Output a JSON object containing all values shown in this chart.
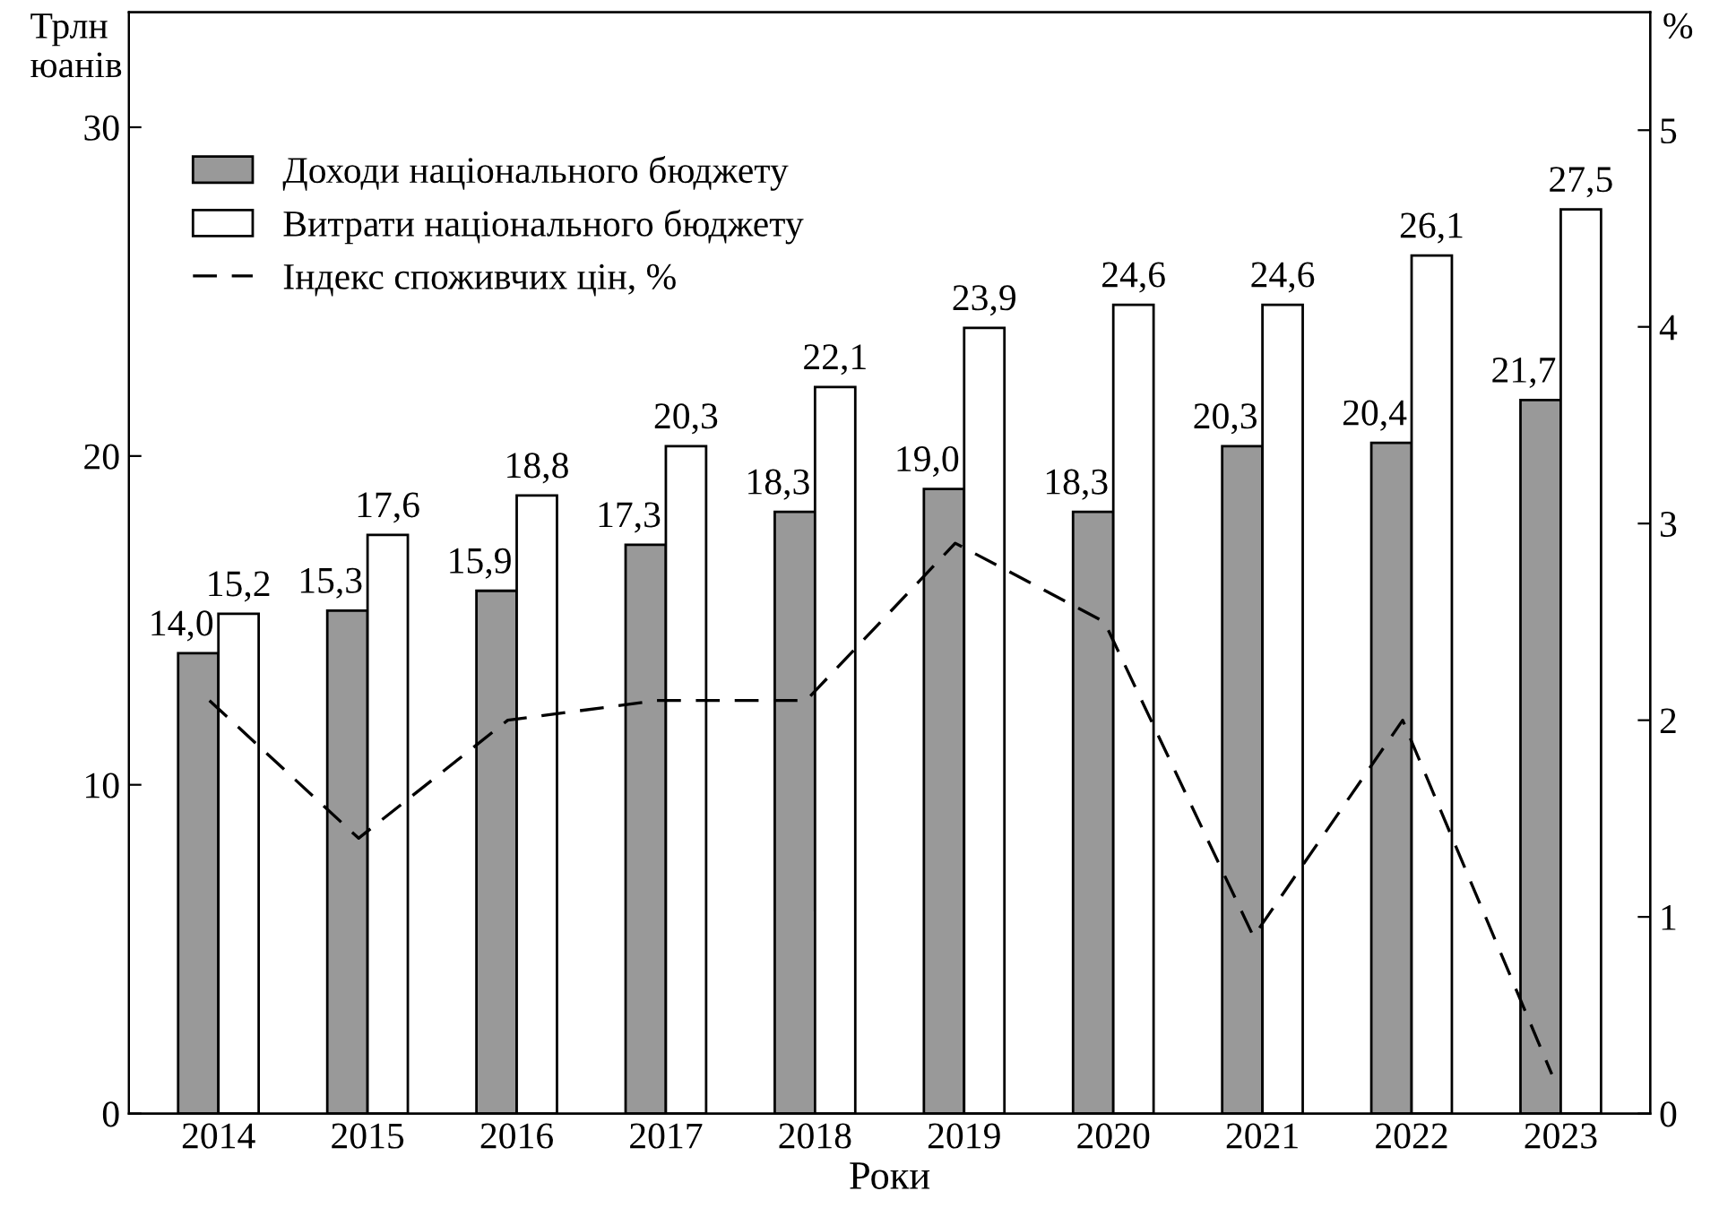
{
  "chart_data": {
    "type": "bar",
    "xlabel": "Роки",
    "ylabel": "Трлн юанів",
    "y2label": "%",
    "categories": [
      "2014",
      "2015",
      "2016",
      "2017",
      "2018",
      "2019",
      "2020",
      "2021",
      "2022",
      "2023"
    ],
    "series": [
      {
        "name": "Доходи національного бюджету",
        "color": "#999999",
        "values": [
          14.0,
          15.3,
          15.9,
          17.3,
          18.3,
          19.0,
          18.3,
          20.3,
          20.4,
          21.7
        ],
        "value_labels": [
          "14,0",
          "15,3",
          "15,9",
          "17,3",
          "18,3",
          "19,0",
          "18,3",
          "20,3",
          "20,4",
          "21,7"
        ]
      },
      {
        "name": "Витрати національного бюджету",
        "color": "#ffffff",
        "values": [
          15.2,
          17.6,
          18.8,
          20.3,
          22.1,
          23.9,
          24.6,
          24.6,
          26.1,
          27.5
        ],
        "value_labels": [
          "15,2",
          "17,6",
          "18,8",
          "20,3",
          "22,1",
          "23,9",
          "24,6",
          "24,6",
          "26,1",
          "27,5"
        ]
      },
      {
        "name": "Індекс споживчих цін, %",
        "type": "line",
        "axis": "y2",
        "color": "#000000",
        "line_style": "dashed",
        "values": [
          2.1,
          1.4,
          2.0,
          2.1,
          2.1,
          2.9,
          2.5,
          0.9,
          2.0,
          0.2
        ]
      }
    ],
    "ylim": [
      0,
      33.5
    ],
    "yticks": [
      0,
      10,
      20,
      30
    ],
    "y2lim": [
      0,
      5.6
    ],
    "y2ticks": [
      0,
      1,
      2,
      3,
      4,
      5
    ],
    "legend": "top left",
    "grid": false
  }
}
